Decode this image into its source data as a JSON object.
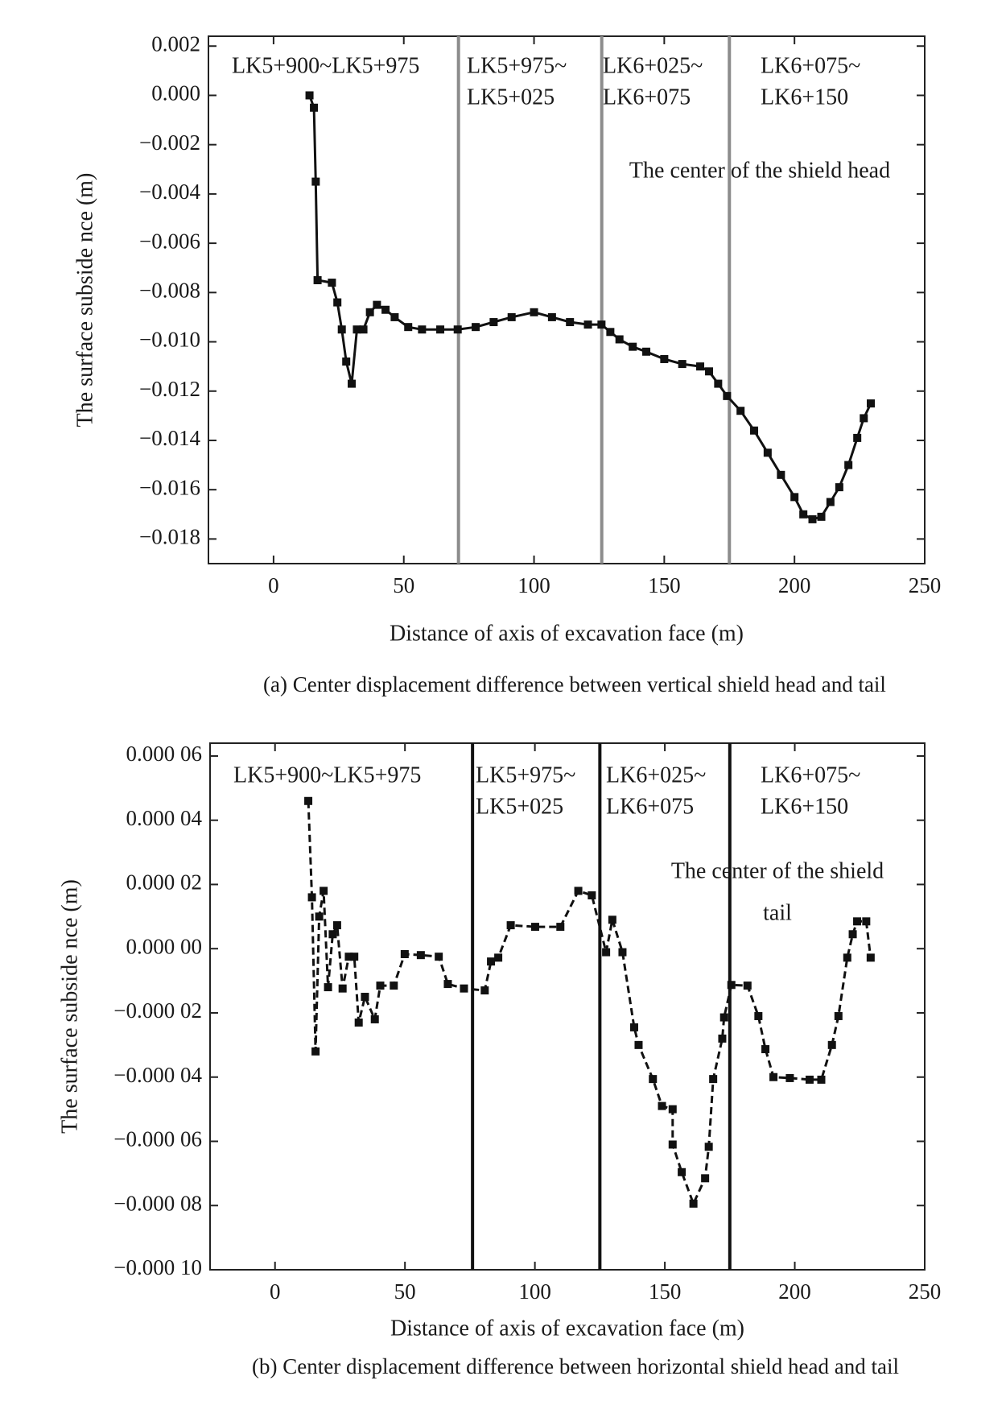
{
  "chart_data": [
    {
      "type": "line",
      "title": "(a) Center displacement difference between vertical shield head and tail",
      "xlabel": "Distance of axis of excavation face (m)",
      "ylabel": "The surface subside nce (m)",
      "xlim": [
        -25,
        250
      ],
      "xticks": [
        0,
        50,
        100,
        150,
        200,
        250
      ],
      "ylim": [
        -0.019,
        0.0024
      ],
      "yticks": [
        0.002,
        {
          "value": 0,
          "label": "0.000"
        },
        {
          "value": -0.002,
          "label": "−0.002"
        },
        {
          "value": -0.004,
          "label": "−0.004"
        },
        {
          "value": -0.006,
          "label": "−0.006"
        },
        {
          "value": -0.008,
          "label": "−0.008"
        },
        {
          "value": -0.01,
          "label": "−0.010"
        },
        {
          "value": -0.012,
          "label": "−0.012"
        },
        {
          "value": -0.014,
          "label": "−0.014"
        },
        {
          "value": -0.016,
          "label": "−0.016"
        },
        {
          "value": -0.018,
          "label": "−0.018"
        }
      ],
      "vlines": [
        71,
        126,
        175
      ],
      "vline_color": "#8c8c8c",
      "regions": [
        [
          "LK5+900~LK5+975"
        ],
        [
          "LK5+975~",
          "LK5+025"
        ],
        [
          "LK6+025~",
          "LK6+075"
        ],
        [
          "LK6+075~",
          "LK6+150"
        ]
      ],
      "annotations": [
        "The center of the shield head"
      ],
      "color": "#111111",
      "line_style": "solid",
      "x": [
        13.8,
        15.5,
        16.2,
        16.9,
        22.4,
        24.5,
        26.2,
        27.9,
        30,
        32,
        34.5,
        37,
        39.7,
        43,
        46.5,
        51.7,
        57,
        64,
        70.7,
        77.6,
        84.5,
        91.4,
        100,
        106.9,
        113.8,
        120.7,
        125.9,
        129.3,
        132.8,
        137.9,
        143.1,
        150,
        156.9,
        163.8,
        167.2,
        170.7,
        174.1,
        179.3,
        184.5,
        189.7,
        194.8,
        200,
        203.4,
        206.9,
        210.3,
        213.8,
        217.2,
        220.7,
        224.1,
        226.6,
        229.3
      ],
      "values": [
        0,
        -0.0005,
        -0.0035,
        -0.0075,
        -0.0076,
        -0.0084,
        -0.0095,
        -0.0108,
        -0.0117,
        -0.0095,
        -0.0095,
        -0.0088,
        -0.0085,
        -0.0087,
        -0.009,
        -0.0094,
        -0.0095,
        -0.0095,
        -0.0095,
        -0.0094,
        -0.0092,
        -0.009,
        -0.0088,
        -0.009,
        -0.0092,
        -0.0093,
        -0.0093,
        -0.0096,
        -0.0099,
        -0.0102,
        -0.0104,
        -0.0107,
        -0.0109,
        -0.011,
        -0.0112,
        -0.0117,
        -0.0122,
        -0.0128,
        -0.0136,
        -0.0145,
        -0.0154,
        -0.0163,
        -0.017,
        -0.0172,
        -0.0171,
        -0.0165,
        -0.0159,
        -0.015,
        -0.0139,
        -0.0131,
        -0.0125
      ]
    },
    {
      "type": "line",
      "title": "(b) Center displacement difference between horizontal shield head and tail",
      "xlabel": "Distance of axis of excavation face (m)",
      "ylabel": "The surface subside nce (m)",
      "xlim": [
        -25,
        250
      ],
      "xticks": [
        0,
        50,
        100,
        150,
        200,
        250
      ],
      "ylim": [
        -0.0001,
        6.4e-05
      ],
      "yticks": [
        {
          "value": 6e-05,
          "label": "0.000 06"
        },
        {
          "value": 4e-05,
          "label": "0.000 04"
        },
        {
          "value": 2e-05,
          "label": "0.000 02"
        },
        {
          "value": 0,
          "label": "0.000 00"
        },
        {
          "value": -2e-05,
          "label": "−0.000 02"
        },
        {
          "value": -4e-05,
          "label": "−0.000 04"
        },
        {
          "value": -6e-05,
          "label": "−0.000 06"
        },
        {
          "value": -8e-05,
          "label": "−0.000 08"
        },
        {
          "value": -0.0001,
          "label": "−0.000 10"
        }
      ],
      "vlines": [
        76,
        125,
        175
      ],
      "vline_color": "#111111",
      "regions": [
        [
          "LK5+900~LK5+975"
        ],
        [
          "LK5+975~",
          "LK5+025"
        ],
        [
          "LK6+025~",
          "LK6+075"
        ],
        [
          "LK6+075~",
          "LK6+150"
        ]
      ],
      "annotations": [
        "The center of the shield",
        "tail"
      ],
      "color": "#111111",
      "line_style": "dashed",
      "x": [
        12.8,
        14.2,
        15.6,
        17,
        18.7,
        20.4,
        22.2,
        23.9,
        26,
        28.4,
        30.5,
        32.2,
        34.6,
        38.4,
        40.5,
        45.7,
        49.9,
        56.1,
        63,
        66.5,
        72.7,
        80.7,
        83.1,
        85.9,
        90.7,
        100.1,
        109.8,
        116.7,
        121.9,
        127.4,
        129.8,
        133.7,
        138.2,
        139.9,
        145.4,
        148.9,
        153,
        153,
        156.5,
        161,
        165.5,
        166.9,
        168.6,
        172.1,
        172.8,
        175.6,
        181.8,
        186,
        188.7,
        191.8,
        198.1,
        205.7,
        210.2,
        214.3,
        216.8,
        220.2,
        222.3,
        224,
        227.5,
        229.2
      ],
      "values": [
        4.6e-05,
        1.6e-05,
        -3.2e-05,
        1e-05,
        1.8e-05,
        -1.2e-05,
        4.5e-06,
        7.3e-06,
        -1.24e-05,
        -2.5e-06,
        -2.5e-06,
        -2.3e-05,
        -1.5e-05,
        -2.2e-05,
        -1.15e-05,
        -1.15e-05,
        -1.7e-06,
        -2e-06,
        -2.5e-06,
        -1.1e-05,
        -1.24e-05,
        -1.3e-05,
        -4e-06,
        -2.8e-06,
        7.3e-06,
        6.8e-06,
        6.8e-06,
        1.8e-05,
        1.66e-05,
        -1.1e-06,
        9e-06,
        -1.1e-06,
        -2.45e-05,
        -3e-05,
        -4.06e-05,
        -4.9e-05,
        -5e-05,
        -6.1e-05,
        -6.96e-05,
        -7.94e-05,
        -7.15e-05,
        -6.17e-05,
        -4.06e-05,
        -2.8e-05,
        -2.14e-05,
        -1.13e-05,
        -1.15e-05,
        -2.1e-05,
        -3.13e-05,
        -4e-05,
        -4.03e-05,
        -4.08e-05,
        -4.08e-05,
        -3e-05,
        -2.1e-05,
        -2.8e-06,
        4.5e-06,
        8.5e-06,
        8.5e-06,
        -2.8e-06
      ]
    }
  ]
}
